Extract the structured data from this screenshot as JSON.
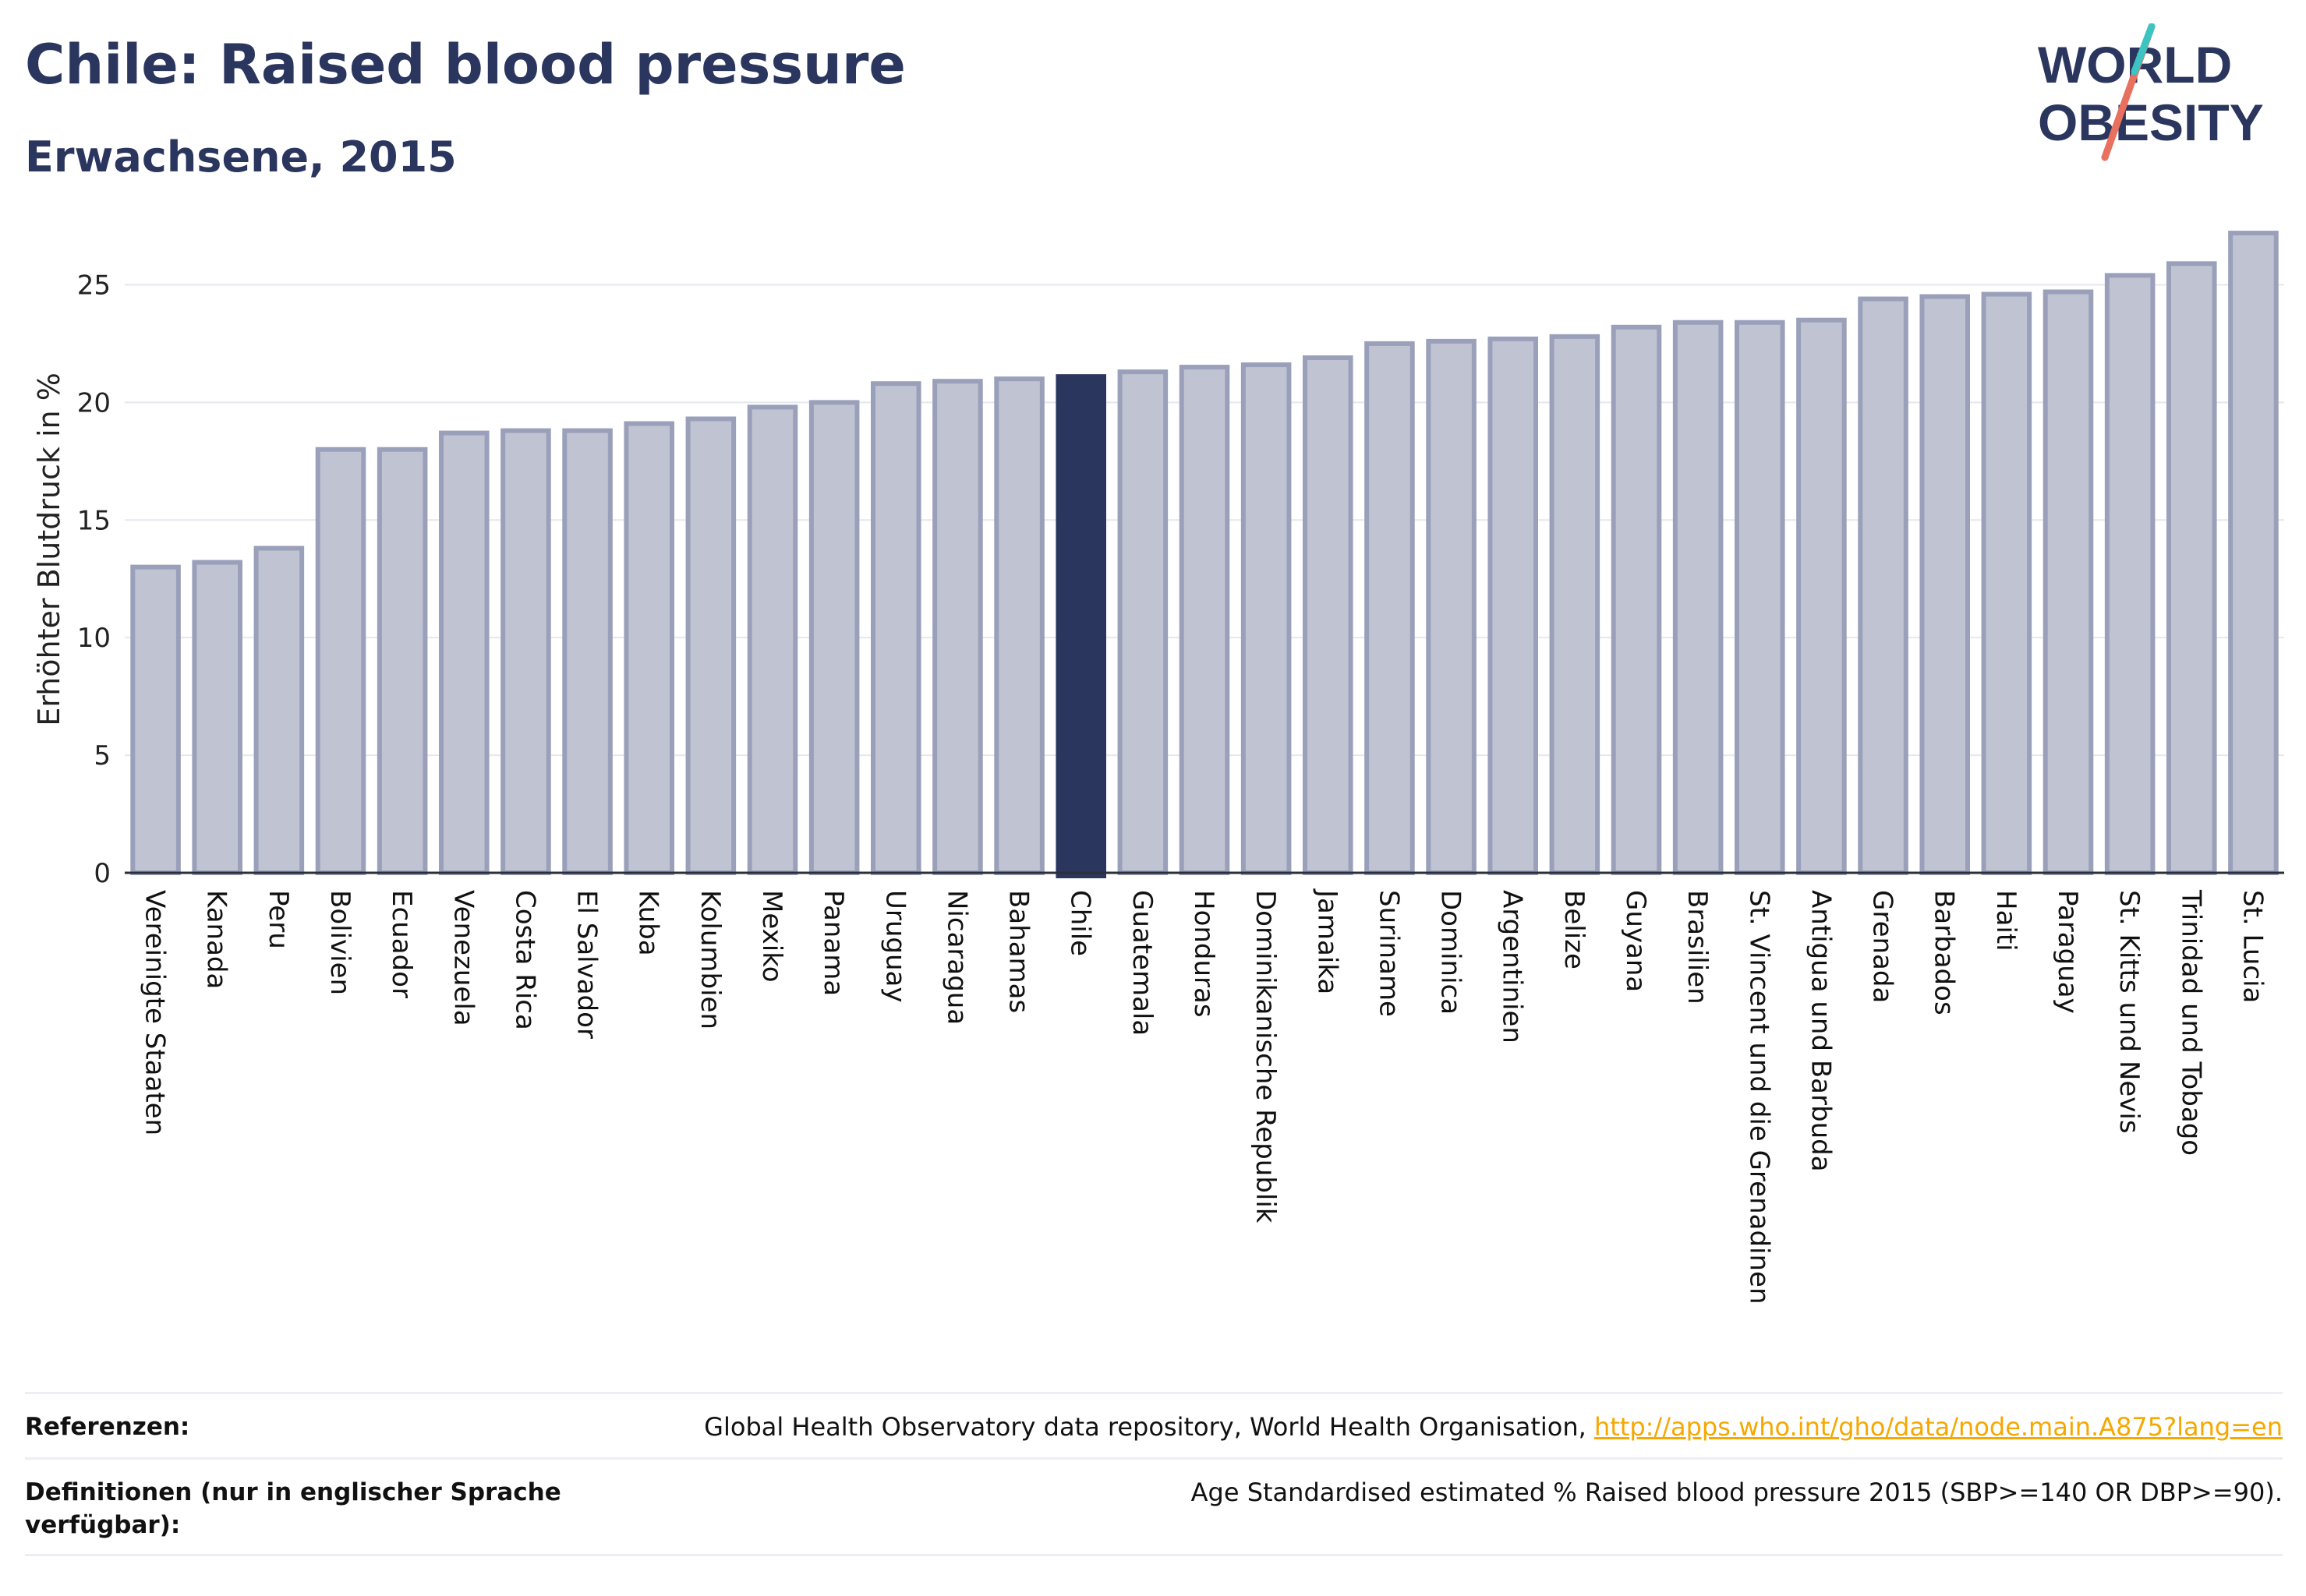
{
  "header": {
    "title": "Chile: Raised blood pressure",
    "subtitle": "Erwachsene, 2015",
    "logo_line1": "WORLD",
    "logo_line2": "OBESITY"
  },
  "colors": {
    "highlight": "#2b365f",
    "bar_fill": "#c0c3d2",
    "bar_stroke": "#9aa0ba",
    "title": "#2b365f",
    "link": "#f5a800",
    "grid": "#e6e8ef"
  },
  "chart_data": {
    "type": "bar",
    "ylabel": "Erhöhter Blutdruck in %",
    "ylim": [
      0,
      27.5
    ],
    "yticks": [
      "0",
      "5",
      "10",
      "15",
      "20",
      "25"
    ],
    "grid": true,
    "highlight": "Chile",
    "categories": [
      "Vereinigte Staaten",
      "Kanada",
      "Peru",
      "Bolivien",
      "Ecuador",
      "Venezuela",
      "Costa Rica",
      "El Salvador",
      "Kuba",
      "Kolumbien",
      "Mexiko",
      "Panama",
      "Uruguay",
      "Nicaragua",
      "Bahamas",
      "Chile",
      "Guatemala",
      "Honduras",
      "Dominikanische Republik",
      "Jamaika",
      "Suriname",
      "Dominica",
      "Argentinien",
      "Belize",
      "Guyana",
      "Brasilien",
      "St. Vincent und die Grenadinen",
      "Antigua und Barbuda",
      "Grenada",
      "Barbados",
      "Haiti",
      "Paraguay",
      "St. Kitts und Nevis",
      "Trinidad und Tobago",
      "St. Lucia"
    ],
    "values": [
      13.0,
      13.2,
      13.8,
      18.0,
      18.0,
      18.7,
      18.8,
      18.8,
      19.1,
      19.3,
      19.8,
      20.0,
      20.8,
      20.9,
      21.0,
      21.1,
      21.3,
      21.5,
      21.6,
      21.9,
      22.5,
      22.6,
      22.7,
      22.8,
      23.2,
      23.4,
      23.4,
      23.5,
      24.4,
      24.5,
      24.6,
      24.7,
      25.4,
      25.9,
      27.2
    ]
  },
  "footer": {
    "references_label": "Referenzen:",
    "references_text": "Global Health Observatory data repository, World Health Organisation,",
    "references_link": "http://apps.who.int/gho/data/node.main.A875?lang=en",
    "definitions_label": "Definitionen (nur in englischer Sprache verfügbar):",
    "definitions_text": "Age Standardised estimated % Raised blood pressure 2015 (SBP>=140 OR DBP>=90)."
  }
}
